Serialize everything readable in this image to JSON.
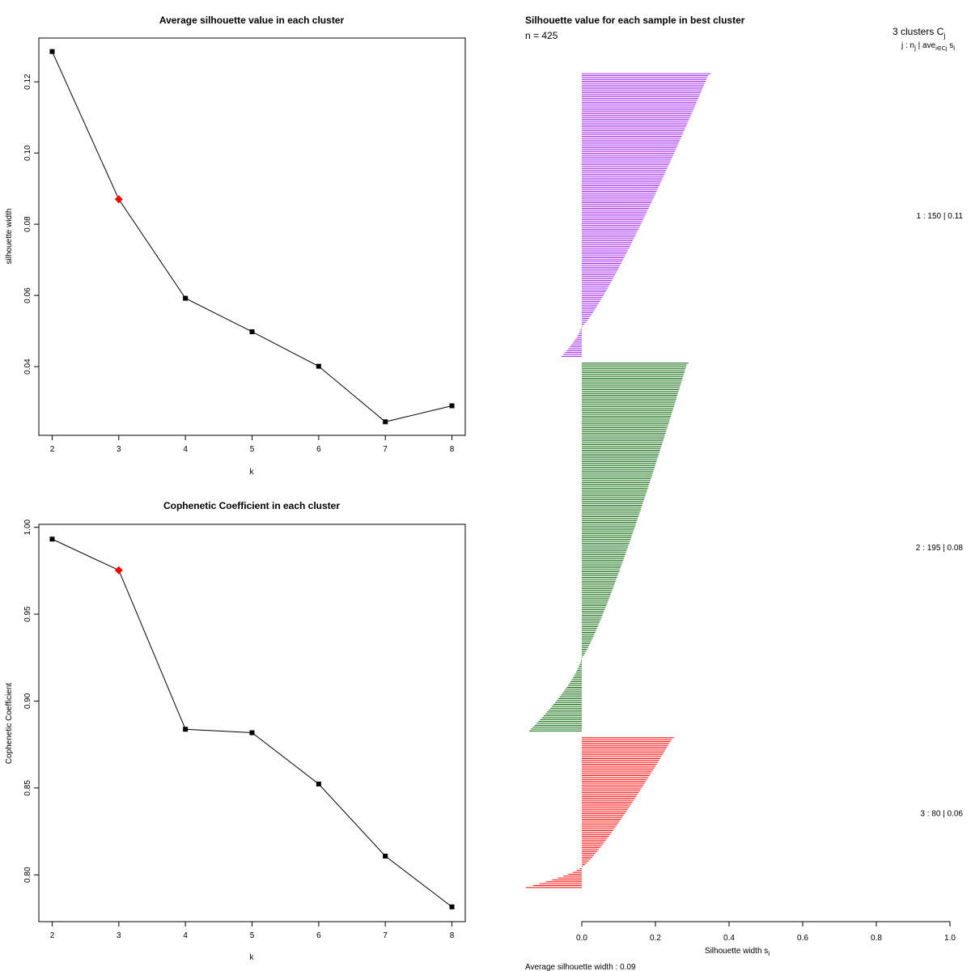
{
  "chart_data": [
    {
      "type": "line",
      "title": "Average silhouette value in each cluster",
      "xlabel": "k",
      "ylabel": "silhouette width",
      "x": [
        2,
        3,
        4,
        5,
        6,
        7,
        8
      ],
      "x_ticks": [
        "2",
        "3",
        "4",
        "5",
        "6",
        "7",
        "8"
      ],
      "values": [
        0.1285,
        0.087,
        0.0592,
        0.0498,
        0.0401,
        0.0245,
        0.029
      ],
      "highlight_k": 3,
      "highlight_color": "#ff0000",
      "y_ticks": [
        0.04,
        0.06,
        0.08,
        0.1,
        0.12
      ],
      "y_tick_labels": [
        "0.04",
        "0.06",
        "0.08",
        "0.10",
        "0.12"
      ],
      "xlim": [
        1.8,
        8.2
      ],
      "ylim": [
        0.0207,
        0.1323
      ]
    },
    {
      "type": "line",
      "title": "Cophenetic Coefficient in each cluster",
      "xlabel": "k",
      "ylabel": "Cophenetic Coefficient",
      "x": [
        2,
        3,
        4,
        5,
        6,
        7,
        8
      ],
      "x_ticks": [
        "2",
        "3",
        "4",
        "5",
        "6",
        "7",
        "8"
      ],
      "values": [
        0.9932,
        0.9753,
        0.8838,
        0.8818,
        0.8523,
        0.8108,
        0.7816
      ],
      "highlight_k": 3,
      "highlight_color": "#ff0000",
      "y_ticks": [
        0.8,
        0.85,
        0.9,
        0.95,
        1.0
      ],
      "y_tick_labels": [
        "0.80",
        "0.85",
        "0.90",
        "0.95",
        "1.00"
      ],
      "xlim": [
        1.8,
        8.2
      ],
      "ylim": [
        0.7731,
        1.0017
      ]
    },
    {
      "type": "bar",
      "orientation": "horizontal",
      "title": "Silhouette value for each sample in best cluster",
      "n_label": "n = 425",
      "xlabel": "Silhouette width s",
      "xlabel_sub": "i",
      "xlim": [
        0,
        1.0
      ],
      "x_ticks": [
        "0.0",
        "0.2",
        "0.4",
        "0.6",
        "0.8",
        "1.0"
      ],
      "header": "3  clusters  C",
      "header_sub": "j",
      "legend_header": "j :  n",
      "legend_header_sub": "j",
      "legend_header_tail": " | ave",
      "legend_header_sub2": "i∈Cj",
      "legend_header_tail2": " s",
      "legend_header_sub3": "i",
      "footer": "Average silhouette width :  0.09",
      "clusters": [
        {
          "id": 1,
          "n": 150,
          "avg": 0.11,
          "label": "1 :   150  |  0.11",
          "color": "#a020f0",
          "max": 0.35,
          "min": -0.055,
          "n_negative": 16
        },
        {
          "id": 2,
          "n": 195,
          "avg": 0.08,
          "label": "2 :   195  |  0.08",
          "color": "#006400",
          "max": 0.29,
          "min": -0.143,
          "n_negative": 39
        },
        {
          "id": 3,
          "n": 80,
          "avg": 0.06,
          "label": "3 :   80   |  0.06",
          "color": "#ff0000",
          "max": 0.25,
          "min": -0.152,
          "n_negative": 11
        }
      ]
    }
  ]
}
